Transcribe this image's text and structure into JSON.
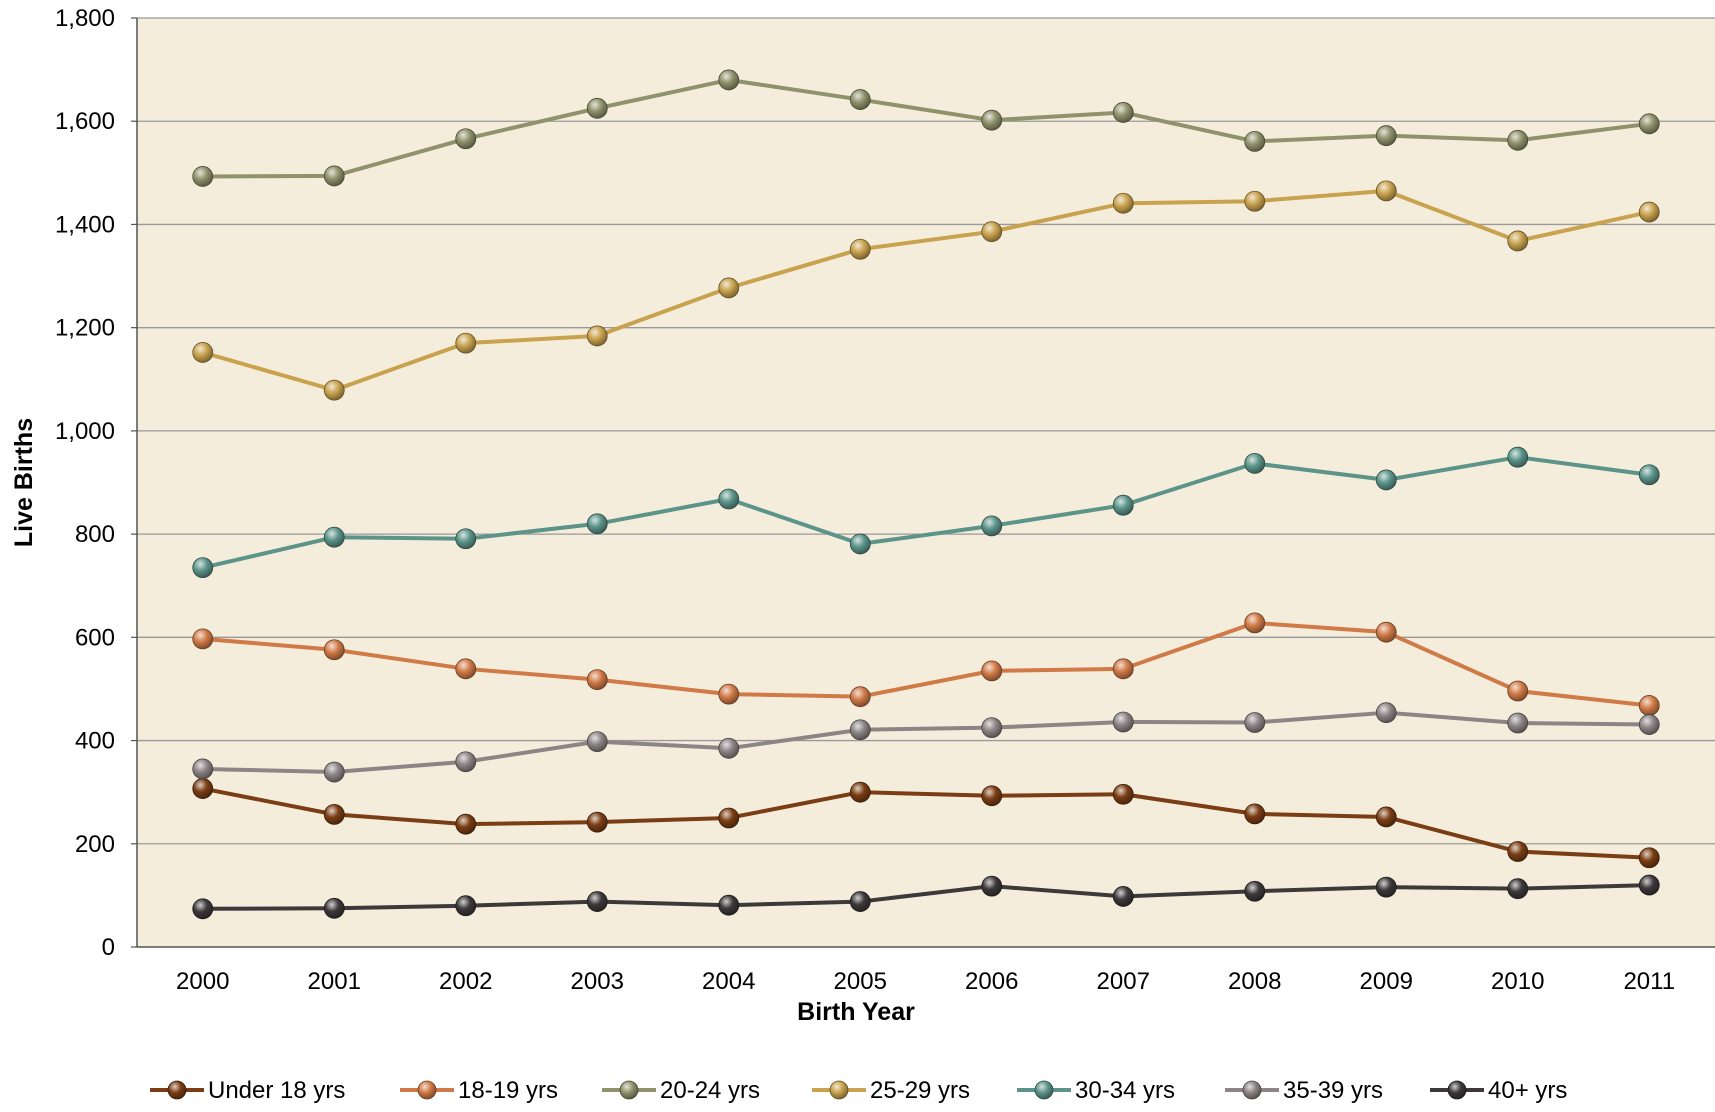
{
  "chart_data": {
    "type": "line",
    "xlabel": "Birth Year",
    "ylabel": "Live Births",
    "ylim": [
      0,
      1800
    ],
    "yticks": [
      0,
      200,
      400,
      600,
      800,
      1000,
      1200,
      1400,
      1600,
      1800
    ],
    "ytick_labels": [
      "0",
      "200",
      "400",
      "600",
      "800",
      "1,000",
      "1,200",
      "1,400",
      "1,600",
      "1,800"
    ],
    "categories": [
      "2000",
      "2001",
      "2002",
      "2003",
      "2004",
      "2005",
      "2006",
      "2007",
      "2008",
      "2009",
      "2010",
      "2011"
    ],
    "grid": true,
    "legend_position": "bottom",
    "colors": {
      "plot_background": "#f5eddc",
      "gridline": "#999999",
      "axis": "#555555"
    },
    "series": [
      {
        "name": "Under 18 yrs",
        "color": "#7a3d14",
        "values": [
          307,
          257,
          238,
          242,
          250,
          300,
          293,
          296,
          258,
          252,
          185,
          173
        ]
      },
      {
        "name": "18-19 yrs",
        "color": "#d07a47",
        "values": [
          597,
          576,
          539,
          518,
          490,
          485,
          535,
          539,
          628,
          610,
          496,
          468
        ]
      },
      {
        "name": "20-24 yrs",
        "color": "#8f926b",
        "values": [
          1493,
          1494,
          1566,
          1625,
          1680,
          1642,
          1602,
          1617,
          1561,
          1572,
          1563,
          1595
        ]
      },
      {
        "name": "25-29 yrs",
        "color": "#c8a24e",
        "values": [
          1152,
          1079,
          1170,
          1184,
          1277,
          1352,
          1386,
          1441,
          1445,
          1465,
          1368,
          1424
        ]
      },
      {
        "name": "30-34 yrs",
        "color": "#5c948a",
        "values": [
          735,
          794,
          791,
          820,
          868,
          781,
          816,
          856,
          937,
          905,
          949,
          915
        ]
      },
      {
        "name": "35-39 yrs",
        "color": "#8c8485",
        "values": [
          345,
          339,
          359,
          398,
          385,
          421,
          425,
          436,
          435,
          454,
          434,
          431
        ]
      },
      {
        "name": "40+ yrs",
        "color": "#3d393a",
        "values": [
          74,
          75,
          80,
          88,
          81,
          88,
          118,
          98,
          108,
          116,
          113,
          120
        ]
      }
    ]
  }
}
